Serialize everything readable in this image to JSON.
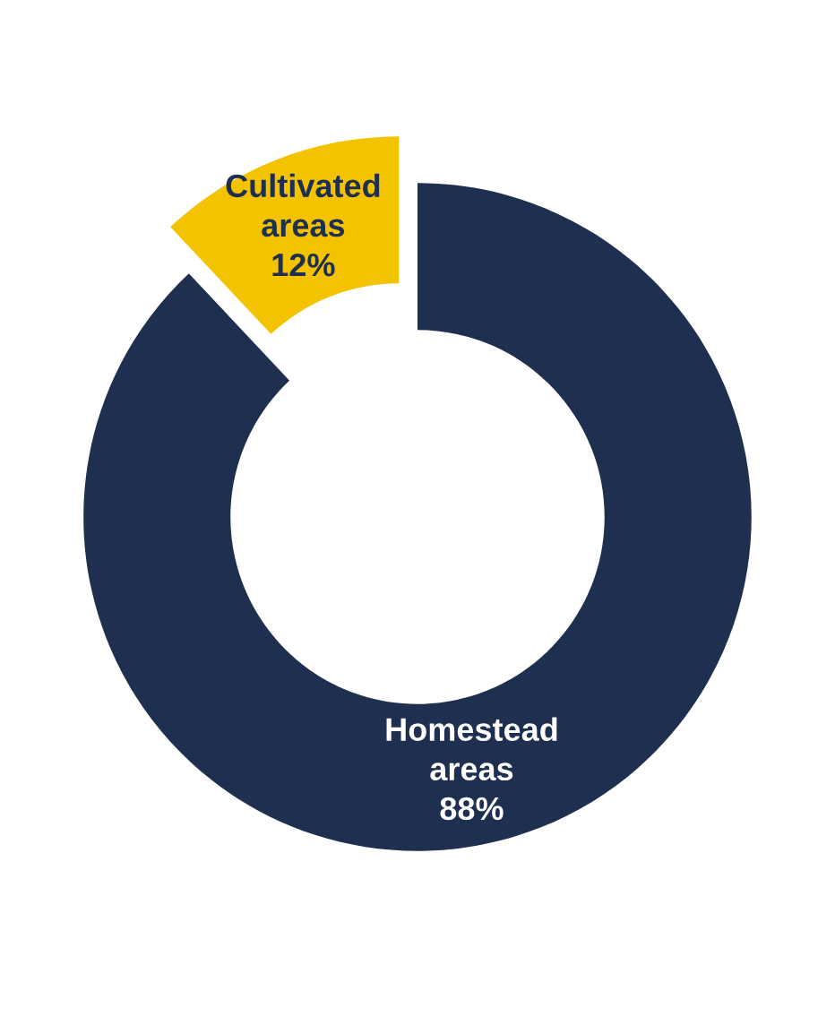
{
  "chart_data": {
    "type": "donut",
    "categories": [
      "Homestead areas",
      "Cultivated areas"
    ],
    "values": [
      88,
      12
    ],
    "colors": [
      "#1f2f4f",
      "#f3c300"
    ],
    "value_labels": [
      "88%",
      "12%"
    ]
  }
}
